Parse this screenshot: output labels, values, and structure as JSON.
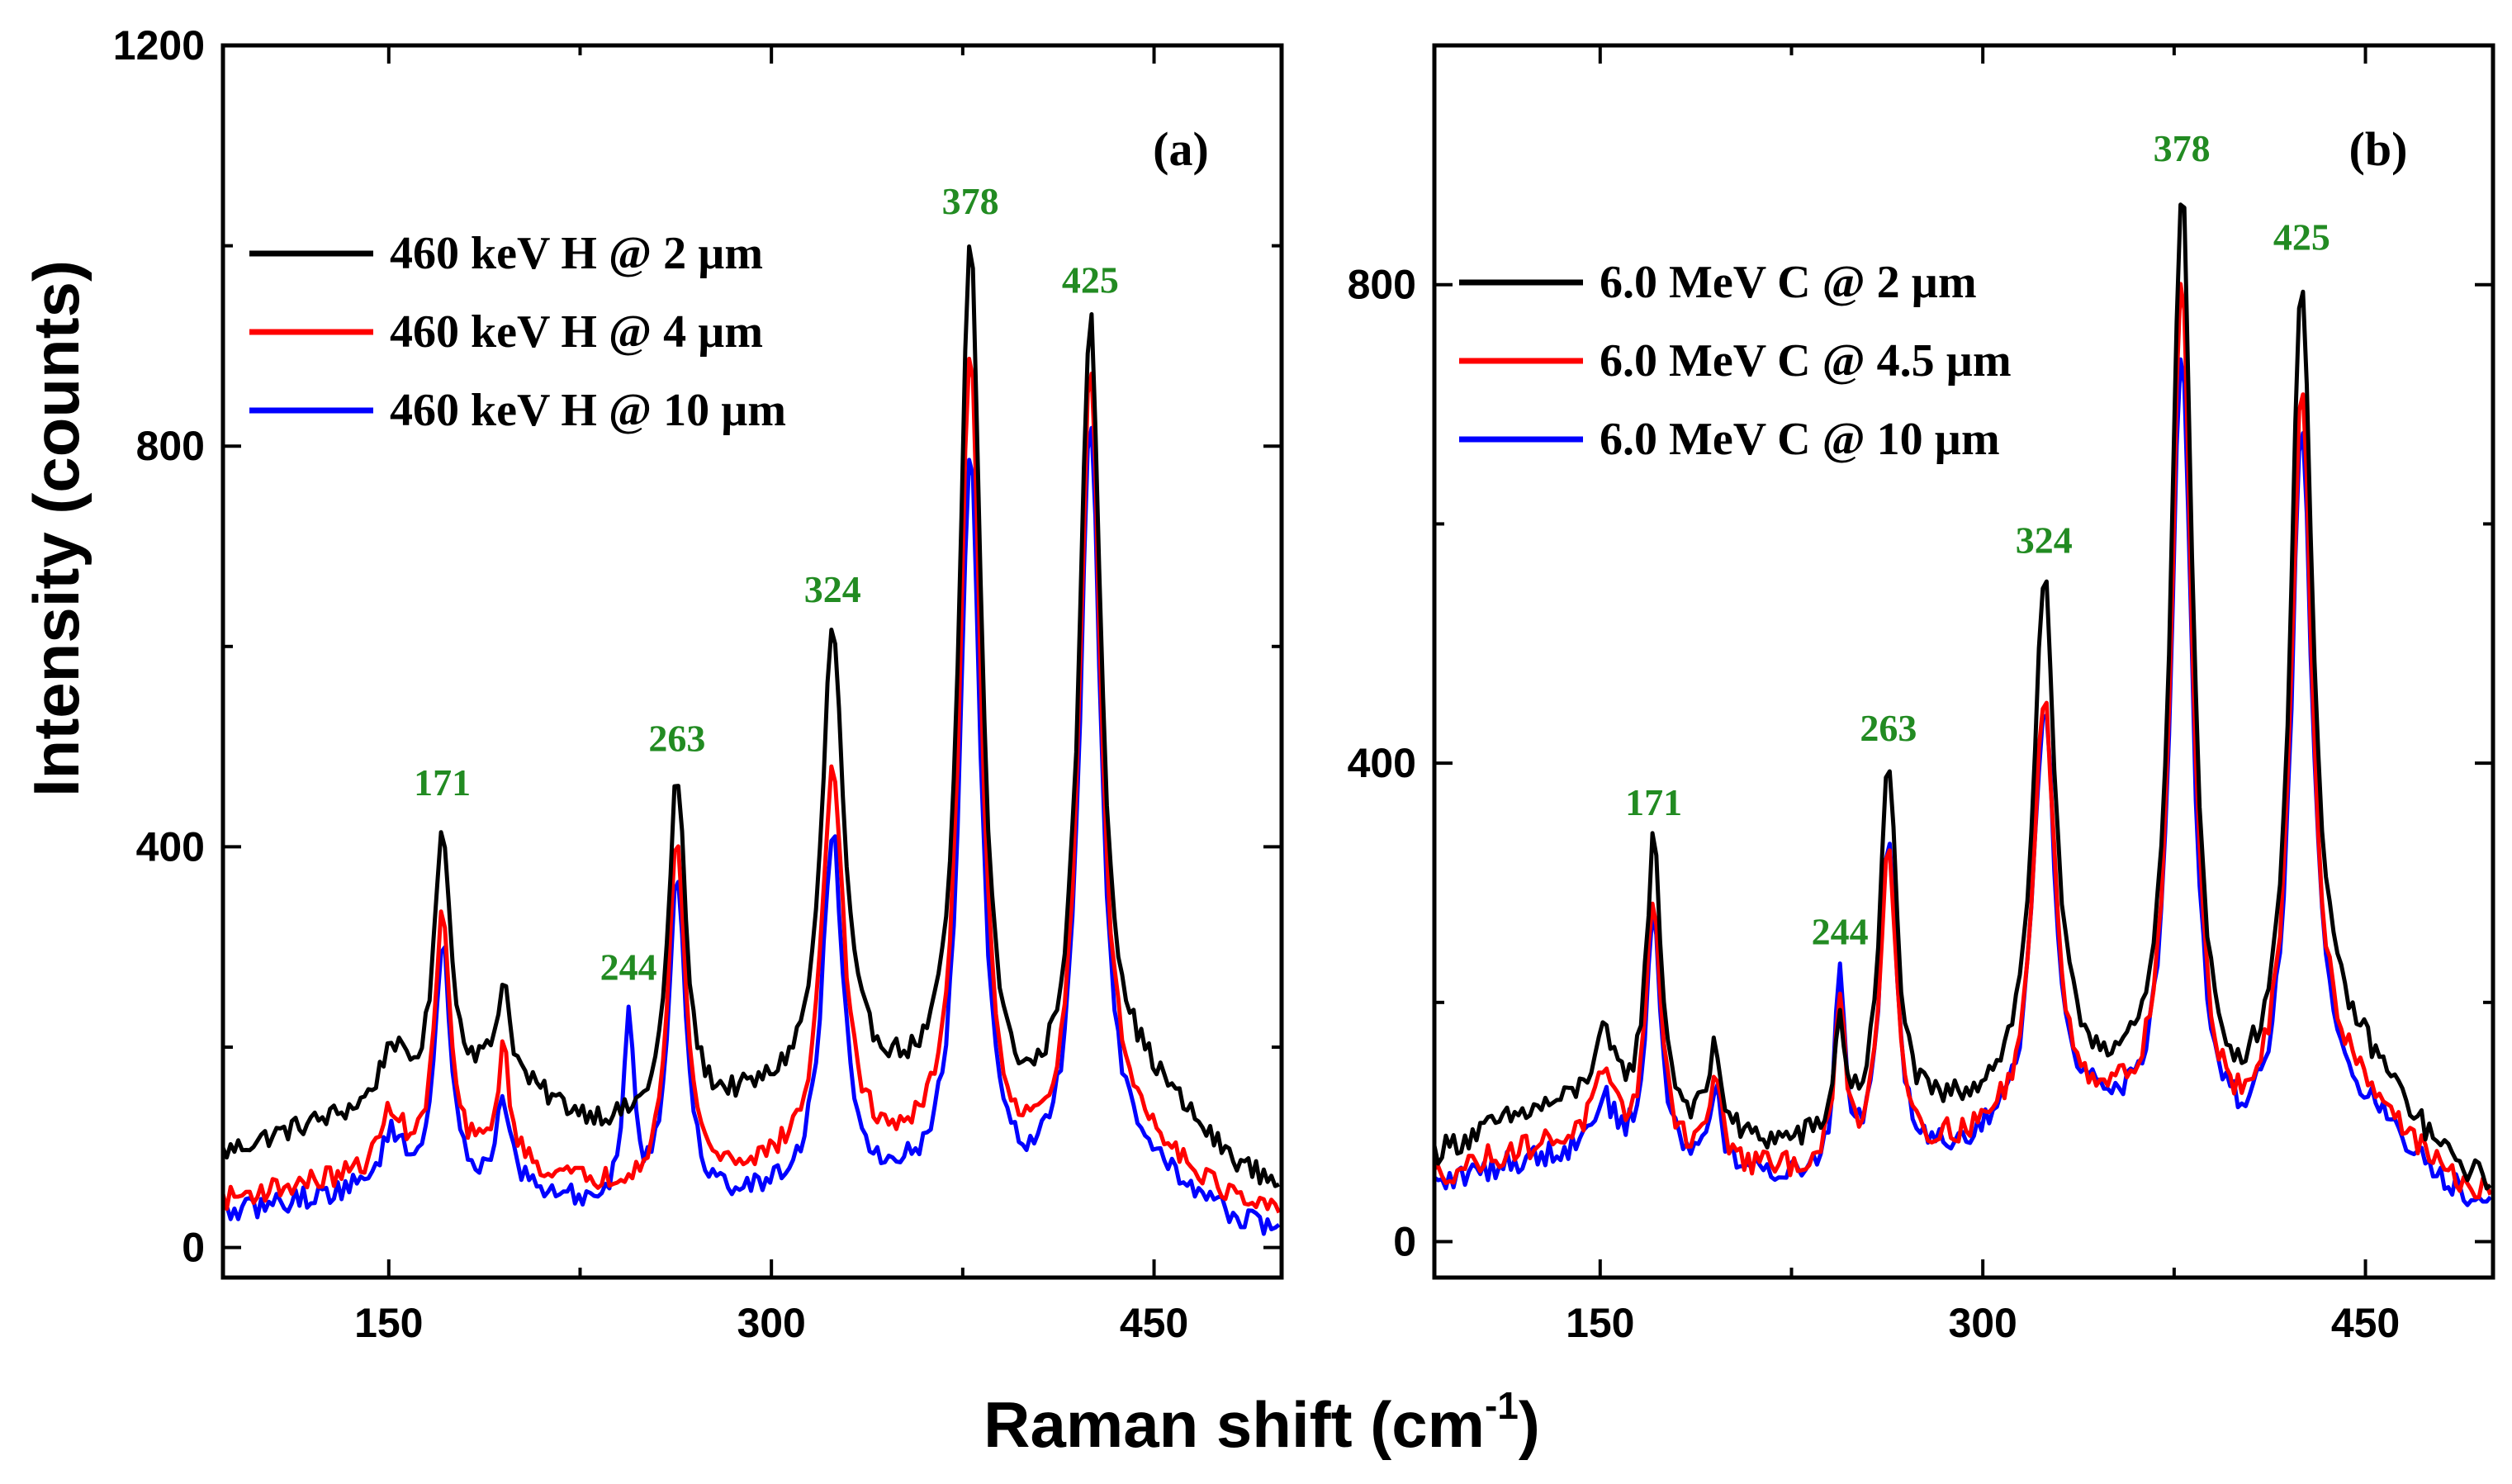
{
  "chart_data": [
    {
      "type": "line",
      "panel_label": "(a)",
      "xlim": [
        85,
        500
      ],
      "ylim": [
        -30,
        1200
      ],
      "x_ticks": [
        150,
        300,
        450
      ],
      "x_tick_labels": [
        "150",
        "300",
        "450"
      ],
      "y_ticks": [
        0,
        400,
        800,
        1200
      ],
      "y_tick_labels": [
        "0",
        "400",
        "800",
        "1200"
      ],
      "series": [
        {
          "name": "460 keV H @ 2 µm",
          "color": "#000000",
          "baseline": 55,
          "bumps": [
            [
              140,
              70,
              50
            ],
            [
              190,
              55,
              25
            ],
            [
              300,
              80,
              60
            ],
            [
              345,
              40,
              30
            ],
            [
              440,
              100,
              25
            ]
          ],
          "peaks": [
            [
              151,
              55,
              5
            ],
            [
              171,
              260,
              3.5
            ],
            [
              195,
              95,
              3
            ],
            [
              244,
              0,
              2.5
            ],
            [
              263,
              340,
              4
            ],
            [
              324,
              450,
              5
            ],
            [
              378,
              880,
              5
            ],
            [
              425,
              770,
              5
            ]
          ]
        },
        {
          "name": "460 keV H @ 4 µm",
          "color": "#ff0000",
          "baseline": 25,
          "bumps": [
            [
              140,
              40,
              50
            ],
            [
              190,
              25,
              25
            ],
            [
              300,
              40,
              60
            ],
            [
              345,
              30,
              30
            ],
            [
              440,
              70,
              25
            ]
          ],
          "peaks": [
            [
              151,
              60,
              5
            ],
            [
              171,
              250,
              3.5
            ],
            [
              195,
              110,
              3
            ],
            [
              244,
              0,
              2.5
            ],
            [
              263,
              345,
              4
            ],
            [
              324,
              390,
              5
            ],
            [
              378,
              830,
              5
            ],
            [
              425,
              780,
              5
            ]
          ]
        },
        {
          "name": "460 keV H @ 10 µm",
          "color": "#0000ff",
          "baseline": 10,
          "bumps": [
            [
              140,
              40,
              50
            ],
            [
              190,
              20,
              25
            ],
            [
              300,
              30,
              60
            ],
            [
              345,
              20,
              30
            ],
            [
              440,
              60,
              25
            ]
          ],
          "peaks": [
            [
              151,
              55,
              5
            ],
            [
              171,
              240,
              3.5
            ],
            [
              195,
              85,
              3
            ],
            [
              244,
              190,
              2.5
            ],
            [
              263,
              330,
              4
            ],
            [
              324,
              350,
              5
            ],
            [
              378,
              740,
              5
            ],
            [
              425,
              760,
              5
            ]
          ]
        }
      ],
      "peak_labels": [
        {
          "x": 171,
          "text": "171"
        },
        {
          "x": 244,
          "text": "244"
        },
        {
          "x": 263,
          "text": "263"
        },
        {
          "x": 324,
          "text": "324"
        },
        {
          "x": 378,
          "text": "378"
        },
        {
          "x": 425,
          "text": "425"
        }
      ]
    },
    {
      "type": "line",
      "panel_label": "(b)",
      "xlim": [
        85,
        500
      ],
      "ylim": [
        -30,
        1000
      ],
      "x_ticks": [
        150,
        300,
        450
      ],
      "x_tick_labels": [
        "150",
        "300",
        "450"
      ],
      "y_ticks": [
        0,
        400,
        800
      ],
      "y_tick_labels": [
        "0",
        "400",
        "800"
      ],
      "series": [
        {
          "name": "6.0 MeV C @ 2 µm",
          "color": "#000000",
          "baseline": 40,
          "bumps": [
            [
              140,
              70,
              45
            ],
            [
              300,
              60,
              60
            ],
            [
              345,
              40,
              30
            ],
            [
              440,
              110,
              25
            ]
          ],
          "peaks": [
            [
              151,
              55,
              5
            ],
            [
              171,
              230,
              3.5
            ],
            [
              195,
              70,
              3
            ],
            [
              244,
              90,
              2.5
            ],
            [
              263,
              300,
              4
            ],
            [
              324,
              420,
              5
            ],
            [
              378,
              780,
              5
            ],
            [
              425,
              660,
              5
            ]
          ]
        },
        {
          "name": "6.0 MeV C @ 4.5 µm",
          "color": "#ff0000",
          "baseline": 30,
          "bumps": [
            [
              140,
              50,
              45
            ],
            [
              300,
              40,
              60
            ],
            [
              345,
              40,
              30
            ],
            [
              440,
              90,
              25
            ]
          ],
          "peaks": [
            [
              151,
              50,
              5
            ],
            [
              171,
              210,
              3.5
            ],
            [
              195,
              70,
              3
            ],
            [
              244,
              130,
              2.5
            ],
            [
              263,
              260,
              4
            ],
            [
              324,
              350,
              5
            ],
            [
              378,
              720,
              5
            ],
            [
              425,
              590,
              5
            ]
          ]
        },
        {
          "name": "6.0 MeV C @ 10 µm",
          "color": "#0000ff",
          "baseline": 25,
          "bumps": [
            [
              140,
              45,
              45
            ],
            [
              300,
              40,
              60
            ],
            [
              345,
              40,
              30
            ],
            [
              440,
              80,
              25
            ]
          ],
          "peaks": [
            [
              151,
              45,
              5
            ],
            [
              171,
              200,
              3.5
            ],
            [
              195,
              70,
              3
            ],
            [
              244,
              160,
              2.5
            ],
            [
              263,
              270,
              4
            ],
            [
              324,
              350,
              5
            ],
            [
              378,
              670,
              5
            ],
            [
              425,
              580,
              5
            ]
          ]
        }
      ],
      "peak_labels": [
        {
          "x": 171,
          "text": "171"
        },
        {
          "x": 244,
          "text": "244"
        },
        {
          "x": 263,
          "text": "263"
        },
        {
          "x": 324,
          "text": "324"
        },
        {
          "x": 378,
          "text": "378"
        },
        {
          "x": 425,
          "text": "425"
        }
      ]
    }
  ],
  "shared": {
    "ylabel": "Intensity (counts)",
    "xlabel_main": "Raman shift (cm",
    "xlabel_sup": "-1",
    "xlabel_close": ")",
    "peak_label_color": "#228B22"
  }
}
